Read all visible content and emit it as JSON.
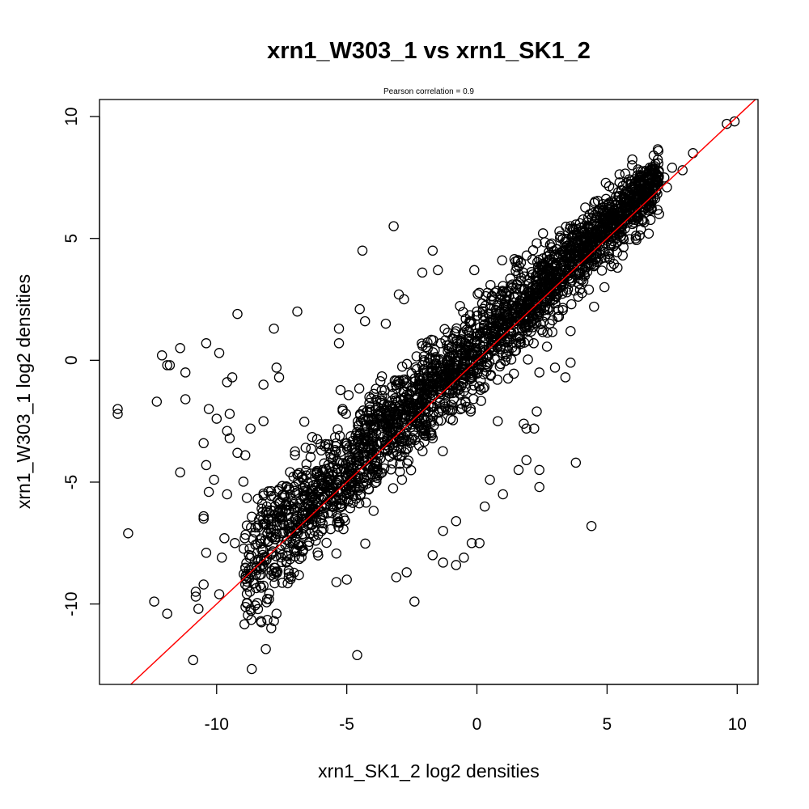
{
  "chart_data": {
    "type": "scatter",
    "title": "xrn1_W303_1 vs xrn1_SK1_2",
    "subtitle": "Pearson correlation =  0.9",
    "xlabel": "xrn1_SK1_2 log2 densities",
    "ylabel": "xrn1_W303_1 log2 densities",
    "xlim": [
      -14.5,
      10.8
    ],
    "ylim": [
      -13.3,
      10.7
    ],
    "x_ticks": [
      -10,
      -5,
      0,
      5,
      10
    ],
    "y_ticks": [
      -10,
      -5,
      0,
      5,
      10
    ],
    "x_tick_labels": [
      "-10",
      "-5",
      "0",
      "5",
      "10"
    ],
    "y_tick_labels": [
      "-10",
      "-5",
      "0",
      "5",
      "10"
    ],
    "grid": false,
    "point_color": "#000000",
    "point_style": "open-circle",
    "reference_line": {
      "slope": 1,
      "intercept": 0,
      "color": "#ff0000"
    },
    "pearson_correlation": 0.9,
    "points": [
      [
        9.6,
        9.7
      ],
      [
        9.9,
        9.8
      ],
      [
        8.3,
        8.5
      ],
      [
        7.9,
        7.8
      ],
      [
        7.5,
        7.9
      ],
      [
        7.2,
        7.5
      ],
      [
        6.6,
        6.9
      ],
      [
        6.2,
        6.9
      ],
      [
        5.8,
        6.4
      ],
      [
        4.7,
        6.2
      ],
      [
        3.6,
        5.5
      ],
      [
        2.3,
        4.8
      ],
      [
        -3.2,
        5.5
      ],
      [
        -1.7,
        4.5
      ],
      [
        -4.4,
        4.5
      ],
      [
        -1.5,
        3.7
      ],
      [
        -0.1,
        3.7
      ],
      [
        -2.1,
        3.6
      ],
      [
        -3.0,
        2.7
      ],
      [
        -2.8,
        2.5
      ],
      [
        -4.5,
        2.1
      ],
      [
        -4.3,
        1.6
      ],
      [
        -3.5,
        1.5
      ],
      [
        -5.3,
        1.3
      ],
      [
        -5.3,
        0.7
      ],
      [
        -12.1,
        0.2
      ],
      [
        -11.4,
        0.5
      ],
      [
        -10.4,
        0.7
      ],
      [
        -9.9,
        0.3
      ],
      [
        -9.2,
        1.9
      ],
      [
        -6.9,
        2.0
      ],
      [
        -7.8,
        1.3
      ],
      [
        -11.8,
        -0.2
      ],
      [
        -11.9,
        -0.2
      ],
      [
        -11.2,
        -0.5
      ],
      [
        -9.6,
        -0.9
      ],
      [
        -9.4,
        -0.7
      ],
      [
        -7.7,
        -0.3
      ],
      [
        -7.6,
        -0.7
      ],
      [
        -8.2,
        -1.0
      ],
      [
        -13.8,
        -2.0
      ],
      [
        -13.8,
        -2.2
      ],
      [
        -12.3,
        -1.7
      ],
      [
        -11.2,
        -1.6
      ],
      [
        -10.3,
        -2.0
      ],
      [
        -10.0,
        -2.4
      ],
      [
        -9.5,
        -2.2
      ],
      [
        -9.6,
        -2.9
      ],
      [
        -8.7,
        -2.8
      ],
      [
        -8.2,
        -2.5
      ],
      [
        -10.5,
        -3.4
      ],
      [
        -9.5,
        -3.2
      ],
      [
        -9.2,
        -3.8
      ],
      [
        -8.9,
        -3.9
      ],
      [
        -10.4,
        -4.3
      ],
      [
        -11.4,
        -4.6
      ],
      [
        -10.1,
        -4.9
      ],
      [
        -10.3,
        -5.4
      ],
      [
        -9.6,
        -5.5
      ],
      [
        -10.5,
        -6.4
      ],
      [
        -10.5,
        -6.5
      ],
      [
        -13.4,
        -7.1
      ],
      [
        -9.7,
        -7.3
      ],
      [
        -9.3,
        -7.5
      ],
      [
        -10.4,
        -7.9
      ],
      [
        -9.8,
        -8.1
      ],
      [
        -10.5,
        -9.2
      ],
      [
        -10.8,
        -9.5
      ],
      [
        -10.8,
        -9.7
      ],
      [
        -12.4,
        -9.9
      ],
      [
        -11.9,
        -10.4
      ],
      [
        -10.7,
        -10.2
      ],
      [
        -9.9,
        -9.6
      ],
      [
        -8.9,
        -9.2
      ],
      [
        -8.3,
        -10.7
      ],
      [
        -7.7,
        -10.4
      ],
      [
        -7.8,
        -10.7
      ],
      [
        -10.9,
        -12.3
      ],
      [
        -4.6,
        -12.1
      ],
      [
        -2.4,
        -9.9
      ],
      [
        -3.1,
        -8.9
      ],
      [
        -2.7,
        -8.7
      ],
      [
        -5.4,
        -9.1
      ],
      [
        -5.0,
        -9.0
      ],
      [
        -1.7,
        -8.0
      ],
      [
        -1.3,
        -8.3
      ],
      [
        -0.5,
        -8.1
      ],
      [
        -0.8,
        -8.4
      ],
      [
        -0.2,
        -7.5
      ],
      [
        0.1,
        -7.5
      ],
      [
        -1.3,
        -7.0
      ],
      [
        -0.8,
        -6.6
      ],
      [
        0.3,
        -6.0
      ],
      [
        0.5,
        -4.9
      ],
      [
        1.0,
        -5.5
      ],
      [
        1.6,
        -4.5
      ],
      [
        1.9,
        -4.1
      ],
      [
        2.4,
        -4.5
      ],
      [
        2.4,
        -5.2
      ],
      [
        3.8,
        -4.2
      ],
      [
        4.4,
        -6.8
      ],
      [
        2.2,
        -2.8
      ],
      [
        1.9,
        -2.8
      ],
      [
        1.8,
        -2.6
      ],
      [
        2.3,
        -2.1
      ],
      [
        0.8,
        -2.5
      ],
      [
        3.0,
        -0.3
      ],
      [
        2.4,
        -0.5
      ],
      [
        3.4,
        -0.7
      ],
      [
        3.6,
        -0.1
      ],
      [
        1.5,
        0.4
      ],
      [
        2.8,
        1.5
      ],
      [
        3.6,
        1.2
      ],
      [
        4.5,
        2.2
      ],
      [
        4.9,
        3.0
      ],
      [
        5.4,
        3.8
      ],
      [
        5.6,
        4.3
      ],
      [
        6.1,
        5.0
      ],
      [
        6.6,
        5.2
      ],
      [
        7.0,
        6.0
      ],
      [
        7.3,
        7.1
      ],
      [
        6.9,
        7.3
      ],
      [
        5.0,
        5.6
      ]
    ],
    "dense_band": {
      "description_free": true,
      "x_range": [
        -9.0,
        7.0
      ],
      "y_spread": 1.3
    }
  }
}
